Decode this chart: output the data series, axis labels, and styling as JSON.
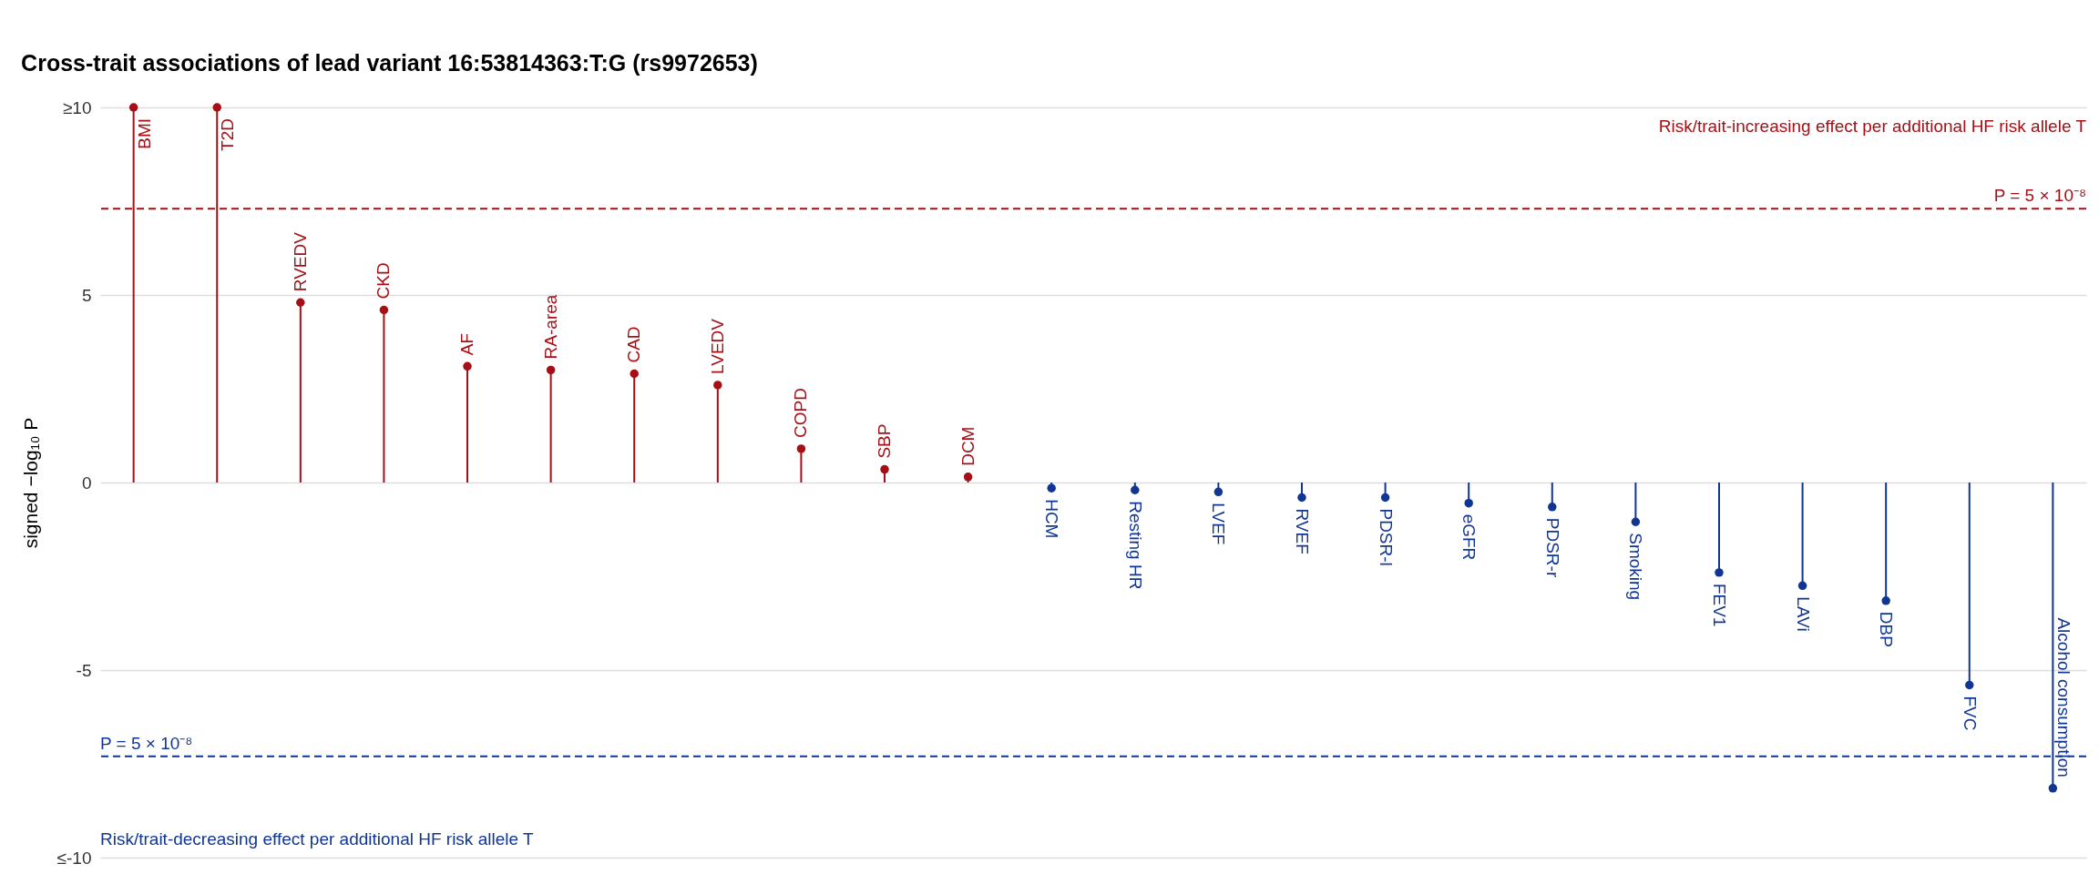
{
  "chart_data": {
    "type": "lollipop",
    "title": "Cross-trait associations of lead variant 16:53814363:T:G (rs9972653)",
    "ylabel": "signed −log₁₀ P",
    "categories": [
      "BMI",
      "T2D",
      "RVEDV",
      "CKD",
      "AF",
      "RA-area",
      "CAD",
      "LVEDV",
      "COPD",
      "SBP",
      "DCM",
      "HCM",
      "Resting HR",
      "LVEF",
      "RVEF",
      "PDSR-l",
      "eGFR",
      "PDSR-r",
      "Smoking",
      "FEV1",
      "LAVi",
      "DBP",
      "FVC",
      "Alcohol consumption"
    ],
    "values": [
      10,
      10,
      4.8,
      4.6,
      3.1,
      3.0,
      2.9,
      2.6,
      0.9,
      0.35,
      0.15,
      -0.15,
      -0.2,
      -0.25,
      -0.4,
      -0.4,
      -0.55,
      -0.65,
      -1.05,
      -2.4,
      -2.75,
      -3.15,
      -5.4,
      -8.15
    ],
    "colors": [
      "#a50f15",
      "#a50f15",
      "#a50f15",
      "#a50f15",
      "#a50f15",
      "#a50f15",
      "#a50f15",
      "#a50f15",
      "#a50f15",
      "#a50f15",
      "#a50f15",
      "#103593",
      "#103593",
      "#103593",
      "#103593",
      "#103593",
      "#103593",
      "#103593",
      "#103593",
      "#103593",
      "#103593",
      "#103593",
      "#103593",
      "#103593"
    ],
    "ylim": [
      -10,
      10
    ],
    "yticks": [
      {
        "value": -10,
        "label": "≤-10"
      },
      -5,
      0,
      5,
      {
        "value": 10,
        "label": "≥10"
      }
    ],
    "grid": "y",
    "marker": "circle",
    "ref_lines": [
      {
        "axis": "y",
        "value": 7.30103,
        "color": "#a50f15",
        "line_style": "dashed"
      },
      {
        "axis": "y",
        "value": -7.30103,
        "color": "#103593",
        "line_style": "dashed"
      }
    ],
    "annotations": [
      "Risk/trait-increasing effect per additional HF risk allele T",
      "Risk/trait-decreasing effect per additional HF risk allele T",
      {
        "text": "P = 5 × 10⁻⁸",
        "y": 7.30103
      },
      {
        "text": "P = 5 × 10⁻⁸",
        "y": -7.30103
      }
    ]
  }
}
